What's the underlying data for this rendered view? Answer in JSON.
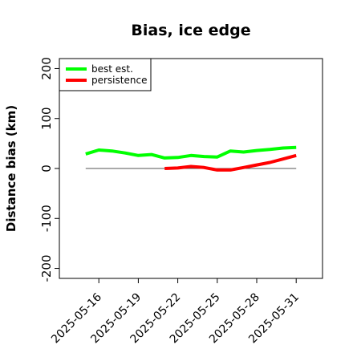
{
  "chart_data": {
    "type": "line",
    "title": "Bias, ice edge",
    "xlabel": "",
    "ylabel": "Distance bias (km)",
    "ylim": [
      -220,
      220
    ],
    "xlim": [
      "2025-05-13",
      "2025-06-02"
    ],
    "yticks": [
      -200,
      -100,
      0,
      100,
      200
    ],
    "xticks": [
      "2025-05-16",
      "2025-05-19",
      "2025-05-22",
      "2025-05-25",
      "2025-05-28",
      "2025-05-31"
    ],
    "legend_position": "top-left",
    "reference_line": 0,
    "series": [
      {
        "name": "best est.",
        "color": "#00ff00",
        "x": [
          "2025-05-15",
          "2025-05-16",
          "2025-05-17",
          "2025-05-18",
          "2025-05-19",
          "2025-05-20",
          "2025-05-21",
          "2025-05-22",
          "2025-05-23",
          "2025-05-24",
          "2025-05-25",
          "2025-05-26",
          "2025-05-27",
          "2025-05-28",
          "2025-05-29",
          "2025-05-30",
          "2025-05-31"
        ],
        "y": [
          29,
          37,
          35,
          31,
          26,
          28,
          21,
          22,
          26,
          24,
          23,
          35,
          33,
          36,
          38,
          41,
          42
        ]
      },
      {
        "name": "persistence",
        "color": "#ff0000",
        "x": [
          "2025-05-21",
          "2025-05-22",
          "2025-05-23",
          "2025-05-24",
          "2025-05-25",
          "2025-05-26",
          "2025-05-27",
          "2025-05-28",
          "2025-05-29",
          "2025-05-30",
          "2025-05-31"
        ],
        "y": [
          0,
          1,
          4,
          2,
          -3,
          -3,
          2,
          7,
          12,
          19,
          26
        ]
      }
    ]
  }
}
